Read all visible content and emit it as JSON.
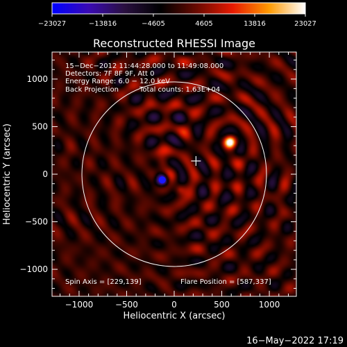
{
  "chart_data": {
    "type": "heatmap",
    "title": "Reconstructed RHESSI Image",
    "xlabel": "Heliocentric X (arcsec)",
    "ylabel": "Heliocentric Y (arcsec)",
    "xlim": [
      -1284,
      1284
    ],
    "ylim": [
      -1284,
      1284
    ],
    "x_ticks": [
      -1000,
      -500,
      0,
      500,
      1000
    ],
    "y_ticks": [
      -1000,
      -500,
      0,
      500,
      1000
    ],
    "x_tick_labels": [
      "−1000",
      "−500",
      "0",
      "500",
      "1000"
    ],
    "y_tick_labels": [
      "−1000",
      "−500",
      "0",
      "500",
      "1000"
    ],
    "colorbar": {
      "min": -23027,
      "max": 23027,
      "ticks": [
        -23027,
        -13816,
        -4605,
        4605,
        13816,
        23027
      ],
      "tick_labels": [
        "−23027",
        "−13816",
        "−4605",
        "4605",
        "13816",
        "23027"
      ],
      "colors": [
        "#0000ff",
        "#3a0ab4",
        "#2a1040",
        "#000000",
        "#6a0a00",
        "#e81a00",
        "#ff9a00",
        "#ffffff"
      ]
    },
    "annotations": [
      "15−Dec−2012 11:44:28.000 to 11:49:08.000",
      "Detectors: 7F 8F 9F, Att 0",
      "Energy Range: 6.0 − 12.0 keV",
      "Back Projection",
      "Total counts: 1.63E+04"
    ],
    "spin_axis_text": "Spin Axis = [229,139]",
    "flare_position_text": "Flare Position = [587,337]",
    "spin_axis": [
      229,
      139
    ],
    "flare_position": [
      587,
      337
    ],
    "solar_disk_radius": 970,
    "negative_source": [
      -125,
      -60
    ],
    "sources": [
      {
        "x": 587,
        "y": 337,
        "peak": 23027
      },
      {
        "x": -125,
        "y": -60,
        "peak": -23027
      },
      {
        "x": 60,
        "y": -160,
        "peak": 9000
      },
      {
        "x": -120,
        "y": 120,
        "peak": 7000
      }
    ]
  },
  "footer": {
    "timestamp": "16−May−2022 17:19"
  }
}
